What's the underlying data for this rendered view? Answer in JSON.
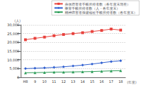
{
  "chart_data": {
    "type": "line",
    "categories": [
      "H8",
      "9",
      "10",
      "11",
      "12",
      "13",
      "14",
      "15",
      "16",
      "17",
      "18"
    ],
    "xlabel": "(年度)",
    "ylabel": "(人)",
    "series": [
      {
        "name": "身体障害者手帳所持者数（各年度末現在）",
        "color": "#e8413c",
        "marker": "square",
        "values": [
          21500,
          22300,
          23000,
          23800,
          24500,
          25000,
          25500,
          26200,
          26800,
          27600,
          27000
        ]
      },
      {
        "name": "療育手帳所持者数（人・各年度末）",
        "color": "#2f5fd0",
        "marker": "diamond",
        "values": [
          5000,
          5200,
          5400,
          5700,
          6000,
          6500,
          7000,
          7600,
          8300,
          9000,
          9500
        ]
      },
      {
        "name": "精神障害者保健福祉手帳所持者数（各年度末）",
        "color": "#2e9e5a",
        "marker": "triangle",
        "values": [
          2600,
          2700,
          2800,
          3000,
          3000,
          3100,
          3200,
          3300,
          3500,
          3700,
          3800
        ]
      }
    ],
    "ylim": [
      0,
      30000
    ],
    "yticks": [
      0,
      {
        "value": 5000,
        "label": "5,000"
      },
      {
        "value": 10000,
        "label": "10,000"
      },
      {
        "value": 15000,
        "label": "15,000"
      },
      {
        "value": 20000,
        "label": "20,000"
      },
      {
        "value": 25000,
        "label": "25,000"
      },
      {
        "value": 30000,
        "label": "30,000"
      }
    ],
    "grid": true,
    "legend": "top"
  }
}
